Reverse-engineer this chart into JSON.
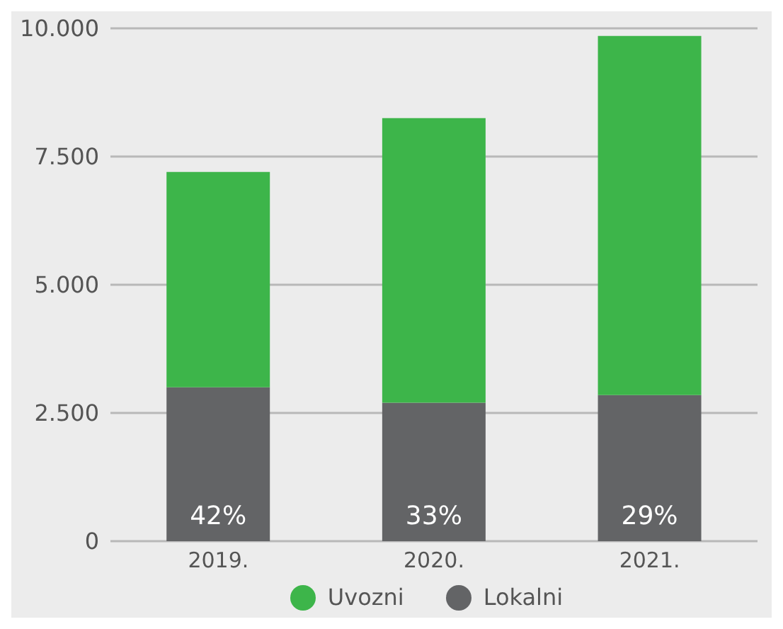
{
  "chart_data": {
    "type": "bar",
    "stacked": true,
    "categories": [
      "2019.",
      "2020.",
      "2021."
    ],
    "series": [
      {
        "name": "Lokalni",
        "color": "#636466",
        "values": [
          3000,
          2700,
          2850
        ]
      },
      {
        "name": "Uvozni",
        "color": "#3db54a",
        "values": [
          4200,
          5550,
          7000
        ]
      }
    ],
    "ylim": [
      0,
      10000
    ],
    "yticks": [
      {
        "value": 0,
        "label": "0"
      },
      {
        "value": 2500,
        "label": "2.500"
      },
      {
        "value": 5000,
        "label": "5.000"
      },
      {
        "value": 7500,
        "label": "7.500"
      },
      {
        "value": 10000,
        "label": "10.000"
      }
    ],
    "annotations": [
      "42%",
      "33%",
      "29%"
    ],
    "grid": "y",
    "legend": "bottom"
  }
}
